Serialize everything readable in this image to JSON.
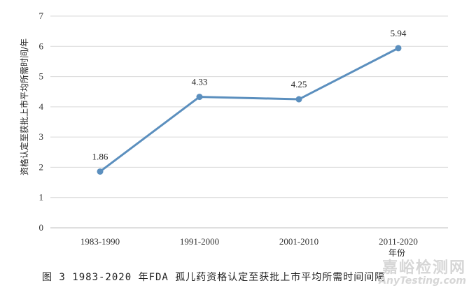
{
  "chart_data": {
    "type": "line",
    "categories": [
      "1983-1990",
      "1991-2000",
      "2001-2010",
      "2011-2020"
    ],
    "values": [
      1.86,
      4.33,
      4.25,
      5.94
    ],
    "data_labels": [
      "1.86",
      "4.33",
      "4.25",
      "5.94"
    ],
    "ylabel": "资格认定至获批上市平均所需时间/年",
    "xlabel": "年份",
    "ylim": [
      0,
      7
    ],
    "yticks": [
      "0",
      "1",
      "2",
      "3",
      "4",
      "5",
      "6",
      "7"
    ],
    "grid": true,
    "colors": {
      "line": "#5b8fbe",
      "grid": "#d9d9d9",
      "axis": "#bfbfbf"
    }
  },
  "caption": "图 3  1983-2020 年FDA 孤儿药资格认定至获批上市平均所需时间间隔",
  "watermark": {
    "main": "嘉峪检测网",
    "sub": "AnyTesting.com"
  }
}
